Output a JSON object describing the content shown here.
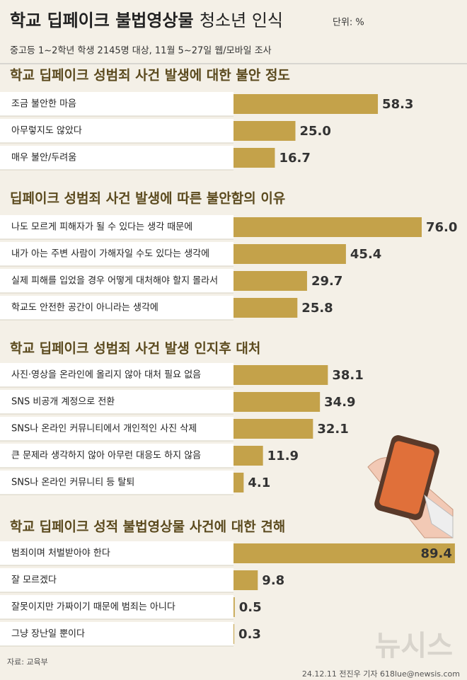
{
  "header": {
    "title": "학교 딥페이크 불법영상물",
    "title_light": "청소년 인식",
    "unit": "단위: %",
    "subtitle": "중고등 1~2학년 학생 2145명 대상, 11월 5~27일 웹/모바일 조사"
  },
  "chart_data": [
    {
      "type": "bar",
      "title": "학교 딥페이크 성범죄 사건 발생에 대한 불안 정도",
      "categories": [
        "조금 불안한 마음",
        "아무렇지도 않았다",
        "매우 불안/두려움"
      ],
      "values": [
        58.3,
        25,
        16.7
      ],
      "value_labels": [
        "58.3",
        "25.0",
        "16.7"
      ],
      "color": "#c4a24a"
    },
    {
      "type": "bar",
      "title": "딥페이크 성범죄 사건 발생에 따른 불안함의 이유",
      "categories": [
        "나도 모르게 피해자가 될 수 있다는 생각 때문에",
        "내가 아는 주변 사람이 가해자일 수도 있다는 생각에",
        "실제 피해를 입었을 경우 어떻게 대처해야 할지 몰라서",
        "학교도 안전한 공간이 아니라는 생각에"
      ],
      "values": [
        76,
        45.4,
        29.7,
        25.8
      ],
      "value_labels": [
        "76.0",
        "45.4",
        "29.7",
        "25.8"
      ],
      "color": "#c4a24a"
    },
    {
      "type": "bar",
      "title": "학교 딥페이크 성범죄 사건 발생 인지후 대처",
      "categories": [
        "사진·영상을 온라인에 올리지 않아 대처 필요 없음",
        "SNS 비공개 계정으로 전환",
        "SNS나 온라인 커뮤니티에서 개인적인 사진 삭제",
        "큰 문제라 생각하지 않아 아무런 대응도 하지 않음",
        "SNS나 온라인 커뮤니티 등 탈퇴"
      ],
      "values": [
        38.1,
        34.9,
        32.1,
        11.9,
        4.1
      ],
      "value_labels": [
        "38.1",
        "34.9",
        "32.1",
        "11.9",
        "4.1"
      ],
      "color": "#c4a24a"
    },
    {
      "type": "bar",
      "title": "학교 딥페이크 성적 불법영상물 사건에 대한 견해",
      "categories": [
        "범죄이며 처벌받아야 한다",
        "잘 모르겠다",
        "잘못이지만 가짜이기 때문에 범죄는 아니다",
        "그냥 장난일 뿐이다"
      ],
      "values": [
        89.4,
        9.8,
        0.5,
        0.3
      ],
      "value_labels": [
        "89.4",
        "9.8",
        "0.5",
        "0.3"
      ],
      "color": "#c4a24a"
    }
  ],
  "footer": {
    "source": "자료: 교육부",
    "credit": "24.12.11 전진우 기자 618lue@newsis.com",
    "logo": "뉴시스"
  }
}
